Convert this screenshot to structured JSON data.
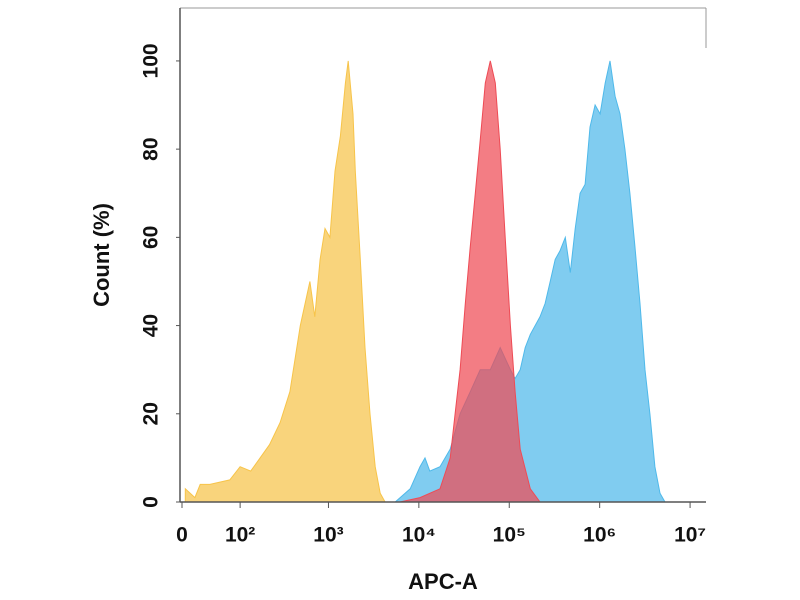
{
  "chart_data": {
    "type": "histogram-overlay",
    "x_label": "APC-A",
    "y_label": "Count  (%)",
    "xscale": "biexponential",
    "xlim": [
      0,
      15000000
    ],
    "ylim": [
      0,
      112
    ],
    "xticks": [
      0,
      {
        "value": 100,
        "label": "10²"
      },
      {
        "value": 1000,
        "label": "10³"
      },
      {
        "value": 10000,
        "label": "10⁴"
      },
      {
        "value": 100000,
        "label": "10⁵"
      },
      {
        "value": 1000000,
        "label": "10⁶"
      },
      {
        "value": 10000000,
        "label": "10⁷"
      }
    ],
    "yticks": [
      0,
      20,
      40,
      60,
      80,
      100
    ],
    "series": [
      {
        "color": "#f7c44a",
        "x": [
          4,
          16,
          23,
          37,
          74,
          100,
          134,
          172,
          220,
          290,
          373,
          487,
          623,
          705,
          807,
          915,
          1037,
          1180,
          1354,
          1540,
          1654,
          1870,
          1980,
          2250,
          2540,
          2880,
          3290,
          3740,
          4230
        ],
        "values": [
          3,
          1,
          4,
          4,
          5,
          8,
          7,
          10,
          13,
          18,
          25,
          40,
          50,
          42,
          55,
          62,
          60,
          75,
          83,
          95,
          100,
          88,
          75,
          55,
          35,
          20,
          8,
          2,
          0
        ]
      },
      {
        "color": "#4fb9ea",
        "x": [
          5480,
          8030,
          10300,
          11700,
          13200,
          17150,
          22200,
          28600,
          37100,
          47700,
          61700,
          79300,
          103000,
          116000,
          132000,
          150000,
          171000,
          219000,
          249000,
          284000,
          322000,
          365000,
          417000,
          473000,
          536000,
          608000,
          690000,
          782000,
          890000,
          1010000,
          1150000,
          1300000,
          1480000,
          1680000,
          1900000,
          2160000,
          2450000,
          2790000,
          3170000,
          3590000,
          4080000,
          4650000,
          5280000
        ],
        "values": [
          0,
          3,
          8,
          10,
          7,
          8,
          12,
          20,
          25,
          30,
          30,
          35,
          30,
          28,
          30,
          35,
          38,
          42,
          45,
          50,
          55,
          57,
          60,
          52,
          62,
          70,
          72,
          85,
          90,
          88,
          95,
          100,
          92,
          88,
          80,
          70,
          58,
          45,
          30,
          20,
          8,
          2,
          0
        ]
      },
      {
        "color": "#ee4b55",
        "x": [
          6170,
          10300,
          17150,
          22200,
          25200,
          28600,
          32600,
          37100,
          42100,
          47700,
          54300,
          61700,
          70000,
          79300,
          90200,
          103000,
          116000,
          132000,
          171000,
          219000
        ],
        "values": [
          0,
          1,
          3,
          10,
          20,
          30,
          45,
          58,
          70,
          82,
          95,
          100,
          95,
          80,
          60,
          40,
          25,
          12,
          3,
          0
        ]
      }
    ]
  }
}
